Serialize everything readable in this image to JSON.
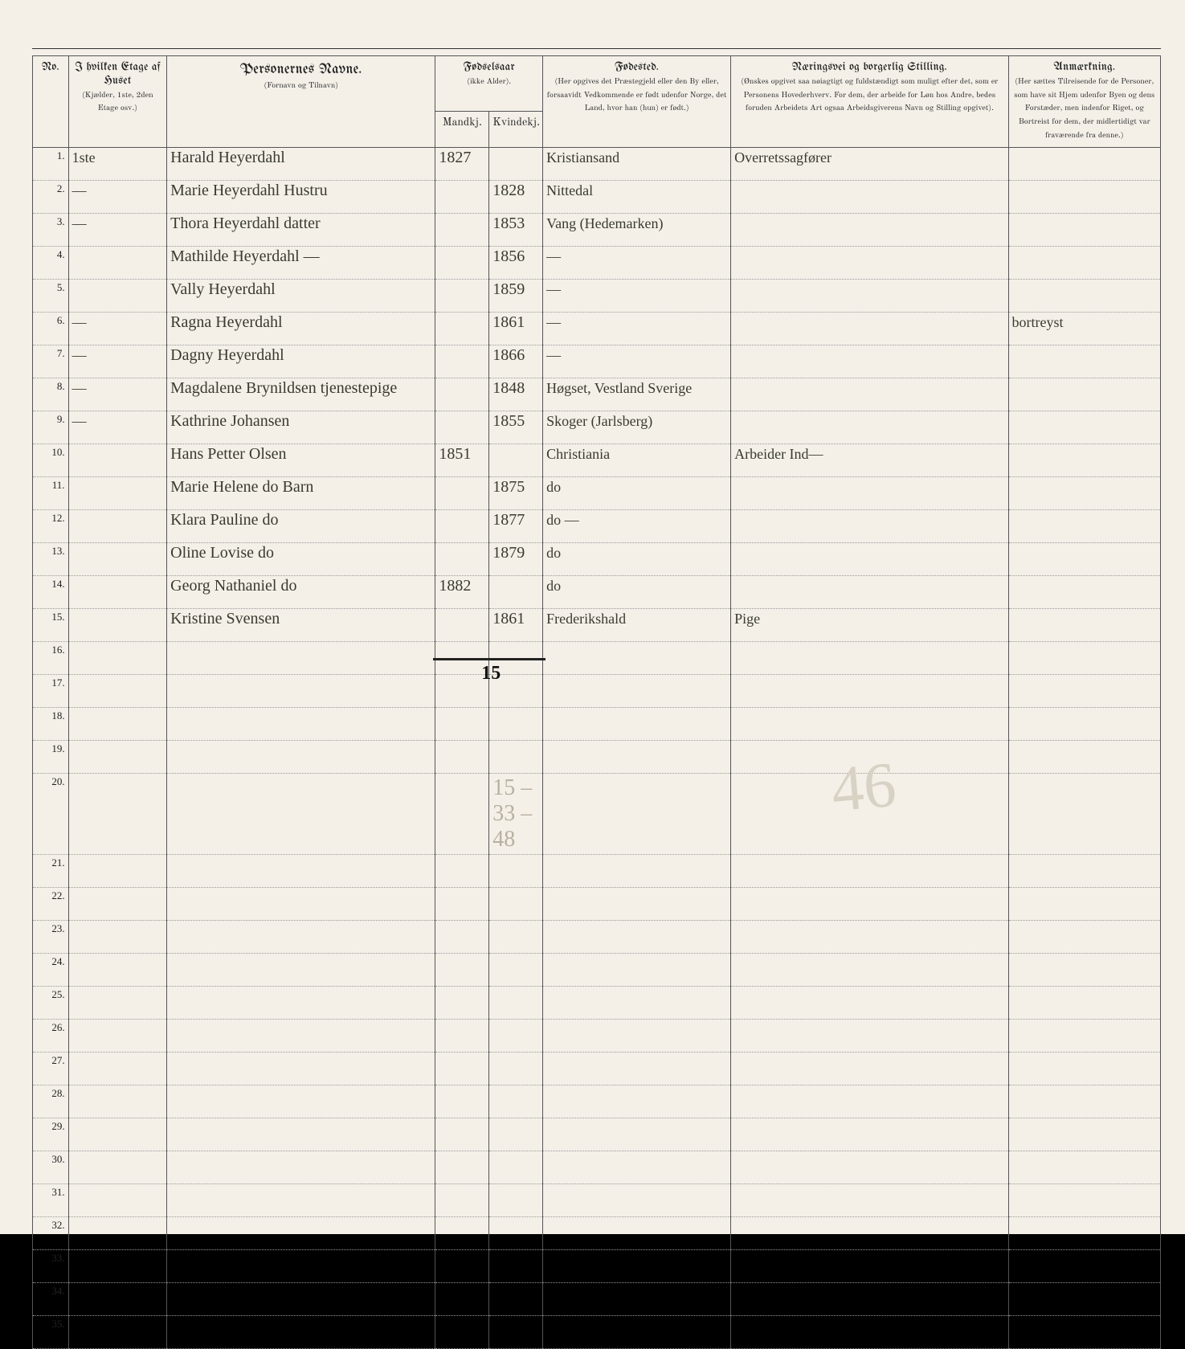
{
  "headers": {
    "no": "No.",
    "etage": "I hvilken Etage af Huset",
    "etage_sub": "(Kjælder, 1ste, 2den Etage osv.)",
    "navne": "Personernes Navne.",
    "navne_sub": "(Fornavn og Tilnavn)",
    "fodselsaar": "Fødselsaar",
    "fodselsaar_sub": "(ikke Alder).",
    "mandkj": "Mandkj.",
    "kvindekj": "Kvindekj.",
    "fodested": "Fødested.",
    "fodested_sub": "(Her opgives det Præstegjeld eller den By eller, forsaavidt Vedkommende er født udenfor Norge, det Land, hvor han (hun) er født.)",
    "stilling": "Næringsvei og borgerlig Stilling.",
    "stilling_sub": "(Ønskes opgivet saa nøiagtigt og fuldstændigt som muligt efter det, som er Personens Hovederhverv. For dem, der arbeide for Løn hos Andre, bedes foruden Arbeidets Art ogsaa Arbeidsgiverens Navn og Stilling opgivet).",
    "anm": "Anmærkning.",
    "anm_sub": "(Her sættes Tilreisende for de Personer, som have sit Hjem udenfor Byen og dens Forstæder, men indenfor Riget, og Bortreist for dem, der midlertidigt var fraværende fra denne.)"
  },
  "rows": [
    {
      "no": "1.",
      "et": "1ste",
      "name": "Harald Heyerdahl",
      "m": "1827",
      "k": "",
      "fod": "Kristiansand",
      "stil": "Overretssagfører",
      "anm": ""
    },
    {
      "no": "2.",
      "et": "—",
      "name": "Marie Heyerdahl  Hustru",
      "m": "",
      "k": "1828",
      "fod": "Nittedal",
      "stil": "",
      "anm": ""
    },
    {
      "no": "3.",
      "et": "—",
      "name": "Thora Heyerdahl   datter",
      "m": "",
      "k": "1853",
      "fod": "Vang (Hedemarken)",
      "stil": "",
      "anm": ""
    },
    {
      "no": "4.",
      "et": "",
      "name": "Mathilde Heyerdahl   —",
      "m": "",
      "k": "1856",
      "fod": "—",
      "stil": "",
      "anm": ""
    },
    {
      "no": "5.",
      "et": "",
      "name": "Vally Heyerdahl",
      "m": "",
      "k": "1859",
      "fod": "—",
      "stil": "",
      "anm": ""
    },
    {
      "no": "6.",
      "et": "—",
      "name": "Ragna Heyerdahl",
      "m": "",
      "k": "1861",
      "fod": "—",
      "stil": "",
      "anm": "bortreyst"
    },
    {
      "no": "7.",
      "et": "—",
      "name": "Dagny Heyerdahl",
      "m": "",
      "k": "1866",
      "fod": "—",
      "stil": "",
      "anm": ""
    },
    {
      "no": "8.",
      "et": "—",
      "name": "Magdalene Brynildsen tjenestepige",
      "m": "",
      "k": "1848",
      "fod": "Høgset, Vestland  Sverige",
      "stil": "",
      "anm": ""
    },
    {
      "no": "9.",
      "et": "—",
      "name": "Kathrine Johansen",
      "m": "",
      "k": "1855",
      "fod": "Skoger (Jarlsberg)",
      "stil": "",
      "anm": ""
    },
    {
      "no": "10.",
      "et": "",
      "name": "Hans Petter Olsen",
      "m": "1851",
      "k": "",
      "fod": "Christiania",
      "stil": "Arbeider  Ind—",
      "anm": ""
    },
    {
      "no": "11.",
      "et": "",
      "name": "Marie Helene do  Barn",
      "m": "",
      "k": "1875",
      "fod": "do",
      "stil": "",
      "anm": ""
    },
    {
      "no": "12.",
      "et": "",
      "name": "Klara Pauline do",
      "m": "",
      "k": "1877",
      "fod": "do  —",
      "stil": "",
      "anm": ""
    },
    {
      "no": "13.",
      "et": "",
      "name": "Oline Lovise do",
      "m": "",
      "k": "1879",
      "fod": "do",
      "stil": "",
      "anm": ""
    },
    {
      "no": "14.",
      "et": "",
      "name": "Georg Nathaniel do",
      "m": "1882",
      "k": "",
      "fod": "do",
      "stil": "",
      "anm": ""
    },
    {
      "no": "15.",
      "et": "",
      "name": "Kristine Svensen",
      "m": "",
      "k": "1861",
      "fod": "Frederikshald",
      "stil": "Pige",
      "anm": ""
    },
    {
      "no": "16.",
      "et": "",
      "name": "",
      "m": "",
      "k": "",
      "fod": "",
      "stil": "",
      "anm": ""
    },
    {
      "no": "17.",
      "et": "",
      "name": "",
      "m": "",
      "k": "",
      "fod": "",
      "stil": "",
      "anm": ""
    },
    {
      "no": "18.",
      "et": "",
      "name": "",
      "m": "",
      "k": "",
      "fod": "",
      "stil": "",
      "anm": ""
    },
    {
      "no": "19.",
      "et": "",
      "name": "",
      "m": "",
      "k": "",
      "fod": "",
      "stil": "",
      "anm": ""
    },
    {
      "no": "20.",
      "et": "",
      "name": "",
      "m": "",
      "k": "",
      "fod": "",
      "stil": "",
      "anm": ""
    },
    {
      "no": "21.",
      "et": "",
      "name": "",
      "m": "",
      "k": "",
      "fod": "",
      "stil": "",
      "anm": ""
    },
    {
      "no": "22.",
      "et": "",
      "name": "",
      "m": "",
      "k": "",
      "fod": "",
      "stil": "",
      "anm": ""
    },
    {
      "no": "23.",
      "et": "",
      "name": "",
      "m": "",
      "k": "",
      "fod": "",
      "stil": "",
      "anm": ""
    },
    {
      "no": "24.",
      "et": "",
      "name": "",
      "m": "",
      "k": "",
      "fod": "",
      "stil": "",
      "anm": ""
    },
    {
      "no": "25.",
      "et": "",
      "name": "",
      "m": "",
      "k": "",
      "fod": "",
      "stil": "",
      "anm": ""
    },
    {
      "no": "26.",
      "et": "",
      "name": "",
      "m": "",
      "k": "",
      "fod": "",
      "stil": "",
      "anm": ""
    },
    {
      "no": "27.",
      "et": "",
      "name": "",
      "m": "",
      "k": "",
      "fod": "",
      "stil": "",
      "anm": ""
    },
    {
      "no": "28.",
      "et": "",
      "name": "",
      "m": "",
      "k": "",
      "fod": "",
      "stil": "",
      "anm": ""
    },
    {
      "no": "29.",
      "et": "",
      "name": "",
      "m": "",
      "k": "",
      "fod": "",
      "stil": "",
      "anm": ""
    },
    {
      "no": "30.",
      "et": "",
      "name": "",
      "m": "",
      "k": "",
      "fod": "",
      "stil": "",
      "anm": ""
    },
    {
      "no": "31.",
      "et": "",
      "name": "",
      "m": "",
      "k": "",
      "fod": "",
      "stil": "",
      "anm": ""
    },
    {
      "no": "32.",
      "et": "",
      "name": "",
      "m": "",
      "k": "",
      "fod": "",
      "stil": "",
      "anm": ""
    },
    {
      "no": "33.",
      "et": "",
      "name": "",
      "m": "",
      "k": "",
      "fod": "",
      "stil": "",
      "anm": ""
    },
    {
      "no": "34.",
      "et": "",
      "name": "",
      "m": "",
      "k": "",
      "fod": "",
      "stil": "",
      "anm": ""
    },
    {
      "no": "35.",
      "et": "",
      "name": "",
      "m": "",
      "k": "",
      "fod": "",
      "stil": "",
      "anm": ""
    }
  ],
  "tally": "15",
  "pencil_sum": "15 – 33 – 48",
  "big_pencil": "46"
}
